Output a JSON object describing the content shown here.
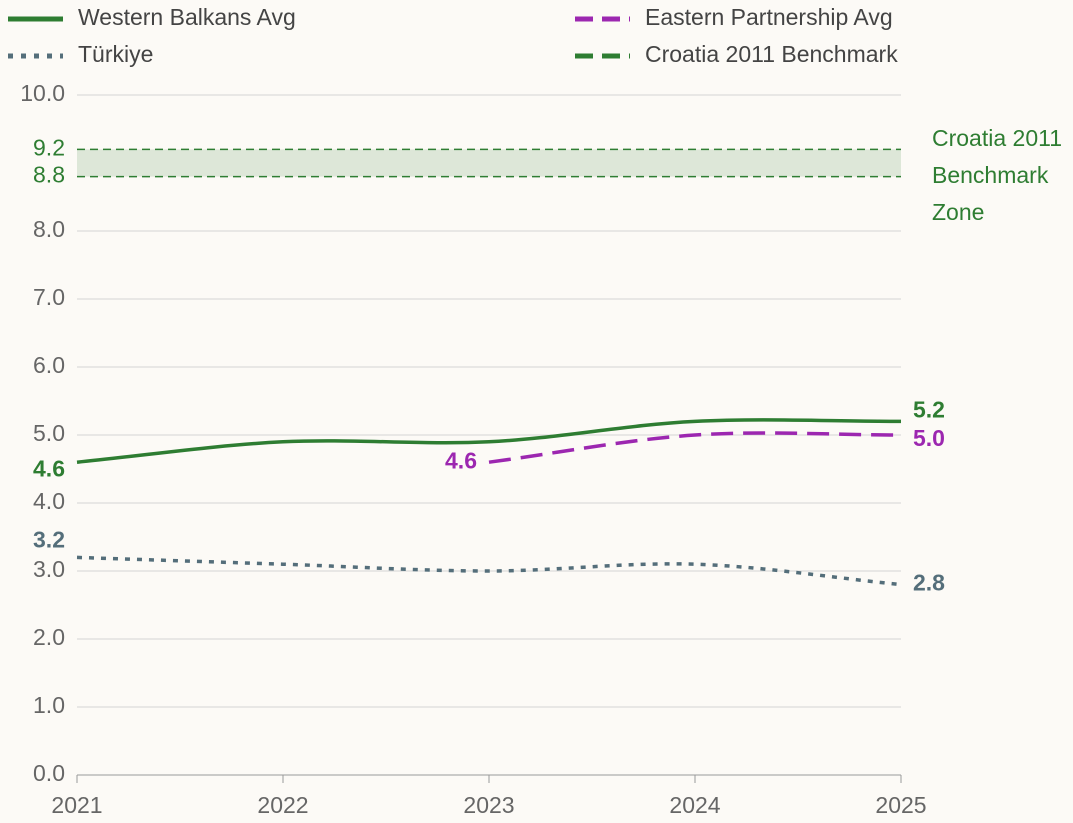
{
  "chart_data": {
    "type": "line",
    "x": [
      2021,
      2022,
      2023,
      2024,
      2025
    ],
    "xlim": [
      2021,
      2025
    ],
    "xticks": [
      2021,
      2022,
      2023,
      2024,
      2025
    ],
    "ylim": [
      0,
      10
    ],
    "yticks": [
      {
        "value": 0,
        "label": "0.0"
      },
      {
        "value": 1,
        "label": "1.0"
      },
      {
        "value": 2,
        "label": "2.0"
      },
      {
        "value": 3,
        "label": "3.0"
      },
      {
        "value": 4,
        "label": "4.0"
      },
      {
        "value": 5,
        "label": "5.0"
      },
      {
        "value": 6,
        "label": "6.0"
      },
      {
        "value": 7,
        "label": "7.0"
      },
      {
        "value": 8,
        "label": "8.0"
      },
      {
        "value": 10,
        "label": "10.0"
      }
    ],
    "grid": true,
    "series": [
      {
        "name": "Western Balkans Avg",
        "color": "#2e7d32",
        "dash": "solid",
        "values": [
          4.6,
          4.9,
          4.9,
          5.2,
          5.2
        ]
      },
      {
        "name": "Eastern Partnership Avg",
        "color": "#9c27b0",
        "dash": "dashed",
        "values": [
          null,
          null,
          4.6,
          5.0,
          5.0
        ],
        "value_labels": [
          null,
          null,
          "4.6",
          "5.0",
          "5.0"
        ]
      },
      {
        "name": "Türkiye",
        "color": "#546e7a",
        "dash": "dotted",
        "values": [
          3.2,
          3.1,
          3.0,
          3.1,
          2.8
        ]
      }
    ],
    "benchmark": {
      "name": "Croatia 2011 Benchmark",
      "color": "#2e7d32",
      "low": 8.8,
      "high": 9.2,
      "annotation_lines": [
        "Croatia 2011",
        "Benchmark",
        "Zone"
      ]
    }
  }
}
